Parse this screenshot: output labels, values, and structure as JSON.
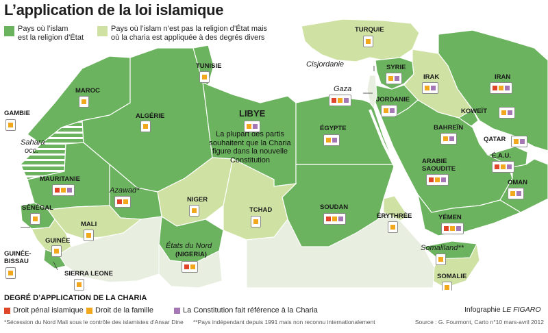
{
  "header": {
    "title": "L’application de la loi islamique"
  },
  "legend_top": {
    "state_religion": {
      "line1": "Pays où l’islam",
      "line2": "est la religion d’État",
      "color": "#6bb35e"
    },
    "not_state_religion": {
      "line1": "Pays où l’islam n’est pas la religion d’État mais",
      "line2": "où la charia est appliquée à des degrés divers",
      "color": "#cfe2a3"
    }
  },
  "colors": {
    "water": "#ffffff",
    "state": "#6bb35e",
    "nonstate": "#cfe2a3",
    "border": "#ffffff",
    "penal": "#e0452a",
    "family": "#f2a81c",
    "constitution": "#a577b4"
  },
  "countries": {
    "turquie": {
      "name": "TURQUIE",
      "flags": [
        "family"
      ]
    },
    "cisjordanie": {
      "name": "Cisjordanie"
    },
    "gaza": {
      "name": "Gaza",
      "flags": [
        "penal",
        "family",
        "constitution"
      ]
    },
    "syrie": {
      "name": "SYRIE",
      "flags": [
        "family",
        "constitution"
      ]
    },
    "irak": {
      "name": "IRAK",
      "flags": [
        "family",
        "constitution"
      ]
    },
    "iran": {
      "name": "IRAN",
      "flags": [
        "penal",
        "family",
        "constitution"
      ]
    },
    "tunisie": {
      "name": "TUNISIE",
      "flags": [
        "family"
      ]
    },
    "maroc": {
      "name": "MAROC",
      "flags": [
        "family"
      ]
    },
    "algerie": {
      "name": "ALGÉRIE",
      "flags": [
        "family"
      ]
    },
    "libye": {
      "name": "LIBYE",
      "flags": [
        "family",
        "constitution"
      ]
    },
    "jordanie": {
      "name": "JORDANIE",
      "flags": [
        "family",
        "constitution"
      ]
    },
    "koweit": {
      "name": "KOWEÏT",
      "flags": [
        "family",
        "constitution"
      ]
    },
    "bahrein": {
      "name": "BAHREÏN",
      "flags": [
        "family",
        "constitution"
      ]
    },
    "qatar": {
      "name": "QATAR",
      "flags": [
        "family",
        "constitution"
      ]
    },
    "eau": {
      "name": "É.A.U.",
      "flags": [
        "penal",
        "family",
        "constitution"
      ]
    },
    "arabie": {
      "name": "ARABIE",
      "name2": "SAOUDITE",
      "flags": [
        "penal",
        "family",
        "constitution"
      ]
    },
    "oman": {
      "name": "OMAN",
      "flags": [
        "family",
        "constitution"
      ]
    },
    "egypte": {
      "name": "ÉGYPTE",
      "flags": [
        "family",
        "constitution"
      ]
    },
    "gambie": {
      "name": "GAMBIE",
      "flags": [
        "family"
      ]
    },
    "sahara": {
      "name": "Sahara",
      "name2": "occ."
    },
    "mauritanie": {
      "name": "MAURITANIE",
      "flags": [
        "penal",
        "family",
        "constitution"
      ]
    },
    "azawad": {
      "name": "Azawad*",
      "flags": [
        "penal",
        "family"
      ]
    },
    "niger": {
      "name": "NIGER",
      "flags": [
        "family"
      ]
    },
    "tchad": {
      "name": "TCHAD",
      "flags": [
        "family"
      ]
    },
    "soudan": {
      "name": "SOUDAN",
      "flags": [
        "penal",
        "family",
        "constitution"
      ]
    },
    "erythree": {
      "name": "ÉRYTHRÉE",
      "flags": [
        "family"
      ]
    },
    "yemen": {
      "name": "YÉMEN",
      "flags": [
        "penal",
        "family",
        "constitution"
      ]
    },
    "senegal": {
      "name": "SÉNÉGAL",
      "flags": [
        "family"
      ]
    },
    "mali": {
      "name": "MALI",
      "flags": [
        "family"
      ]
    },
    "guinee": {
      "name": "GUINÉE",
      "flags": [
        "family"
      ]
    },
    "guinee_bissau": {
      "name": "GUINÉE-",
      "name2": "BISSAU",
      "flags": [
        "family"
      ]
    },
    "sierra_leone": {
      "name": "SIERRA LEONE",
      "flags": [
        "family"
      ]
    },
    "nigeria": {
      "name": "États du Nord",
      "name2": "(NIGERIA)",
      "flags": [
        "penal",
        "family"
      ]
    },
    "somaliland": {
      "name": "Somaliland**",
      "flags": [
        "family"
      ]
    },
    "somalie": {
      "name": "SOMALIE",
      "flags": [
        "family"
      ]
    }
  },
  "libya_note": "La plupart des partis souhaitent que la Charia figure dans la nouvelle Constitution",
  "legend_bottom": {
    "title": "DEGRÉ D’APPLICATION DE LA CHARIA",
    "penal": "Droit pénal islamique",
    "family": "Droit de la famille",
    "constitution": "La Constitution fait référence à la Charia"
  },
  "footnotes": {
    "note1": "*Sécession du Nord Mali sous le contrôle des islamistes d’Ansar Dine",
    "note2": "**Pays indépendant depuis 1991 mais non reconnu internationalement"
  },
  "credit": {
    "prefix": "Infographie ",
    "brand": "LE FIGARO"
  },
  "source": "Source : G. Fourmont, Carto n°10 mars-avril 2012"
}
